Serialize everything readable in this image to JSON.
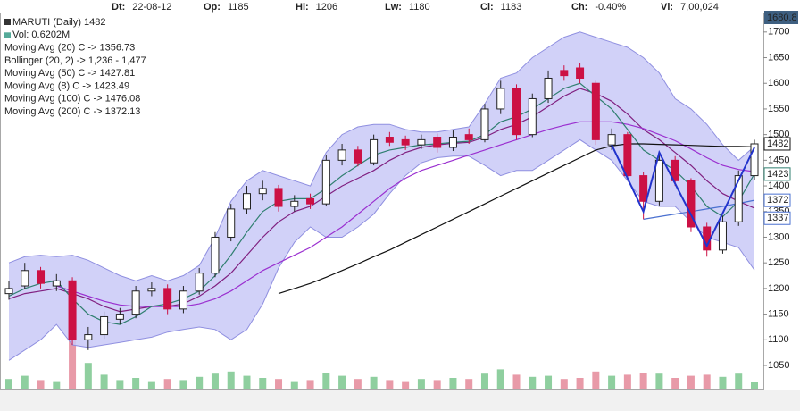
{
  "chart_data": {
    "type": "candlestick",
    "header": [
      {
        "label": "Dt:",
        "value": "22-08-12"
      },
      {
        "label": "Op:",
        "value": "1185"
      },
      {
        "label": "Hi:",
        "value": "1206"
      },
      {
        "label": "Lw:",
        "value": "1180"
      },
      {
        "label": "Cl:",
        "value": "1183"
      },
      {
        "label": "Ch:",
        "value": "-0.40%"
      },
      {
        "label": "Vl:",
        "value": "7,00,024"
      }
    ],
    "symbol": "MARUTI (Daily) 1482",
    "volume_label": "Vol: 0.6202M",
    "cursor_price": 1680.8,
    "ylim": [
      1003,
      1738
    ],
    "yticks": [
      1050,
      1100,
      1150,
      1200,
      1250,
      1300,
      1350,
      1400,
      1450,
      1500,
      1550,
      1600,
      1650,
      1700
    ],
    "up_color": "#ffffff",
    "down_color": "#cc1144",
    "open": [
      1190,
      1205,
      1235,
      1205,
      1215,
      1100,
      1110,
      1140,
      1150,
      1195,
      1200,
      1160,
      1195,
      1230,
      1300,
      1355,
      1385,
      1395,
      1360,
      1375,
      1365,
      1450,
      1470,
      1445,
      1495,
      1490,
      1480,
      1495,
      1475,
      1500,
      1490,
      1550,
      1590,
      1500,
      1570,
      1625,
      1630,
      1600,
      1480,
      1500,
      1420,
      1370,
      1450,
      1410,
      1320,
      1275,
      1330,
      1420
    ],
    "high": [
      1215,
      1250,
      1242,
      1228,
      1222,
      1125,
      1155,
      1162,
      1205,
      1212,
      1208,
      1205,
      1240,
      1310,
      1365,
      1400,
      1410,
      1402,
      1382,
      1385,
      1460,
      1482,
      1478,
      1500,
      1505,
      1498,
      1500,
      1502,
      1508,
      1512,
      1560,
      1605,
      1598,
      1580,
      1625,
      1635,
      1640,
      1605,
      1512,
      1505,
      1428,
      1465,
      1458,
      1415,
      1328,
      1342,
      1430,
      1490
    ],
    "low": [
      1178,
      1198,
      1200,
      1195,
      1090,
      1080,
      1102,
      1130,
      1142,
      1185,
      1150,
      1152,
      1188,
      1222,
      1292,
      1345,
      1372,
      1350,
      1350,
      1355,
      1360,
      1440,
      1438,
      1440,
      1478,
      1470,
      1472,
      1465,
      1468,
      1482,
      1485,
      1540,
      1490,
      1495,
      1562,
      1605,
      1600,
      1480,
      1470,
      1412,
      1335,
      1362,
      1400,
      1310,
      1262,
      1268,
      1322,
      1412
    ],
    "close": [
      1200,
      1235,
      1210,
      1215,
      1100,
      1110,
      1145,
      1150,
      1195,
      1200,
      1160,
      1195,
      1230,
      1300,
      1355,
      1385,
      1395,
      1360,
      1370,
      1365,
      1450,
      1470,
      1445,
      1490,
      1485,
      1480,
      1490,
      1475,
      1495,
      1490,
      1550,
      1590,
      1500,
      1570,
      1610,
      1615,
      1610,
      1490,
      1500,
      1420,
      1370,
      1450,
      1410,
      1320,
      1275,
      1330,
      1420,
      1482
    ],
    "volume": [
      0.9,
      1.2,
      0.8,
      0.7,
      4.6,
      2.4,
      1.3,
      0.8,
      1.0,
      0.7,
      0.9,
      0.8,
      1.1,
      1.4,
      1.6,
      1.2,
      1.0,
      0.9,
      0.7,
      0.8,
      1.5,
      1.2,
      0.9,
      1.1,
      0.8,
      0.7,
      0.9,
      0.8,
      1.0,
      0.9,
      1.4,
      1.8,
      1.3,
      1.1,
      1.2,
      0.9,
      1.0,
      1.6,
      1.2,
      1.3,
      1.5,
      1.4,
      1.0,
      1.2,
      1.3,
      1.1,
      1.4,
      0.6202
    ],
    "volume_lim": [
      0,
      5
    ],
    "volume_up_color": "#8fcf9f",
    "volume_down_color": "#e89aa8",
    "series": [
      {
        "name": "Moving Avg (20) C -> 1356.73",
        "color": "#802080",
        "kind": "line",
        "values": [
          1180,
          1190,
          1195,
          1200,
          1190,
          1180,
          1165,
          1155,
          1160,
          1165,
          1165,
          1170,
          1185,
          1205,
          1230,
          1265,
          1300,
          1330,
          1350,
          1360,
          1380,
          1400,
          1415,
          1430,
          1450,
          1465,
          1475,
          1480,
          1483,
          1485,
          1495,
          1510,
          1520,
          1535,
          1555,
          1575,
          1590,
          1580,
          1565,
          1540,
          1510,
          1490,
          1465,
          1440,
          1410,
          1385,
          1370,
          1356.73
        ]
      },
      {
        "name": "Bollinger (20, 2) -> 1,236 - 1,477",
        "color": "#222222",
        "kind": "band",
        "fill": "#c9c9f7",
        "edge": "#8f8fe0",
        "upper": [
          1250,
          1262,
          1265,
          1262,
          1265,
          1255,
          1240,
          1225,
          1215,
          1225,
          1215,
          1225,
          1245,
          1300,
          1370,
          1410,
          1430,
          1420,
          1410,
          1400,
          1465,
          1500,
          1515,
          1520,
          1520,
          1510,
          1505,
          1505,
          1510,
          1515,
          1560,
          1610,
          1620,
          1650,
          1670,
          1690,
          1700,
          1690,
          1680,
          1670,
          1650,
          1620,
          1570,
          1550,
          1520,
          1480,
          1450,
          1477
        ],
        "lower": [
          1060,
          1080,
          1100,
          1130,
          1090,
          1085,
          1090,
          1095,
          1100,
          1105,
          1115,
          1120,
          1125,
          1120,
          1100,
          1120,
          1170,
          1240,
          1290,
          1320,
          1300,
          1300,
          1320,
          1345,
          1385,
          1420,
          1445,
          1455,
          1458,
          1458,
          1440,
          1420,
          1430,
          1430,
          1450,
          1470,
          1490,
          1470,
          1450,
          1410,
          1370,
          1360,
          1360,
          1330,
          1300,
          1290,
          1280,
          1236
        ]
      },
      {
        "name": "Moving Avg (50) C -> 1427.81",
        "color": "#9b30d0",
        "kind": "line",
        "values": [
          null,
          null,
          null,
          1205,
          1195,
          1185,
          1175,
          1168,
          1165,
          1165,
          1165,
          1165,
          1170,
          1180,
          1195,
          1215,
          1235,
          1250,
          1265,
          1280,
          1300,
          1320,
          1345,
          1370,
          1395,
          1415,
          1430,
          1440,
          1450,
          1460,
          1470,
          1480,
          1490,
          1500,
          1510,
          1518,
          1525,
          1525,
          1525,
          1520,
          1512,
          1500,
          1488,
          1472,
          1455,
          1440,
          1432,
          1427.81
        ]
      },
      {
        "name": "Moving Avg (8) C -> 1423.49",
        "color": "#2f7f6f",
        "kind": "line",
        "values": [
          1185,
          1200,
          1210,
          1215,
          1180,
          1150,
          1135,
          1130,
          1145,
          1165,
          1170,
          1180,
          1195,
          1225,
          1265,
          1310,
          1350,
          1370,
          1375,
          1375,
          1395,
          1420,
          1440,
          1460,
          1470,
          1475,
          1480,
          1482,
          1485,
          1487,
          1500,
          1525,
          1535,
          1550,
          1570,
          1590,
          1600,
          1575,
          1550,
          1510,
          1470,
          1450,
          1430,
          1400,
          1360,
          1340,
          1370,
          1423.49
        ]
      },
      {
        "name": "Moving Avg (100) C -> 1476.08",
        "color": "#111111",
        "kind": "line",
        "values": [
          null,
          null,
          null,
          null,
          null,
          null,
          null,
          null,
          null,
          null,
          null,
          null,
          null,
          null,
          null,
          null,
          null,
          1190,
          1200,
          1210,
          1222,
          1235,
          1248,
          1262,
          1275,
          1290,
          1305,
          1320,
          1335,
          1350,
          1365,
          1380,
          1395,
          1410,
          1425,
          1440,
          1455,
          1470,
          1478,
          1482,
          1482,
          1481,
          1480,
          1479,
          1478,
          1477,
          1477,
          1476.08
        ]
      },
      {
        "name": "Moving Avg (200) C -> 1372.13",
        "color": "#4a70d0",
        "kind": "line",
        "values": [
          null,
          null,
          null,
          null,
          null,
          null,
          null,
          null,
          null,
          null,
          null,
          null,
          null,
          null,
          null,
          null,
          null,
          null,
          null,
          null,
          null,
          null,
          null,
          null,
          null,
          null,
          null,
          null,
          null,
          null,
          null,
          null,
          null,
          null,
          null,
          null,
          null,
          null,
          null,
          null,
          1335,
          1340,
          1345,
          1350,
          1355,
          1360,
          1366,
          1372.13
        ]
      }
    ],
    "pattern": {
      "color": "#2233cc",
      "x": [
        38,
        40,
        41,
        44,
        47
      ],
      "values": [
        1480,
        1350,
        1465,
        1283,
        1475
      ]
    },
    "price_tags": [
      {
        "value": 1337,
        "color": "#4a70d0"
      },
      {
        "value": 1372,
        "color": "#4a70d0"
      },
      {
        "value": 1423,
        "color": "#2f7f6f"
      },
      {
        "value": 1482,
        "color": "#111111"
      }
    ]
  }
}
